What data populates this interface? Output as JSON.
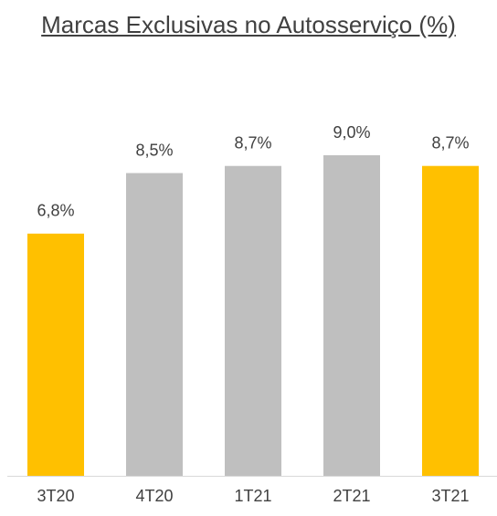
{
  "chart_data": {
    "type": "bar",
    "title": "Marcas Exclusivas no Autosserviço (%)",
    "categories": [
      "3T20",
      "4T20",
      "1T21",
      "2T21",
      "3T21"
    ],
    "values": [
      6.8,
      8.5,
      8.7,
      9.0,
      8.7
    ],
    "value_labels": [
      "6,8%",
      "8,5%",
      "8,7%",
      "9,0%",
      "8,7%"
    ],
    "colors": [
      "#FFC000",
      "#BFBFBF",
      "#BFBFBF",
      "#BFBFBF",
      "#FFC000"
    ]
  }
}
